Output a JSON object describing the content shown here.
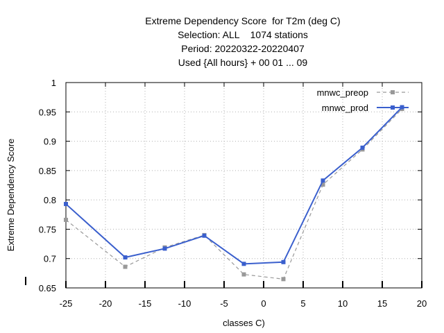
{
  "chart_data": {
    "type": "line",
    "title_lines": [
      "Extreme Dependency Score  for T2m (deg C)",
      "Selection: ALL    1074 stations",
      "Period: 20220322-20220407",
      "Used {All hours} + 00 01 ... 09"
    ],
    "xlabel": "classes C)",
    "ylabel": "Extreme Dependency Score",
    "xlim": [
      -25,
      20
    ],
    "ylim": [
      0.65,
      1.0
    ],
    "xticks": [
      -25,
      -20,
      -15,
      -10,
      -5,
      0,
      5,
      10,
      15,
      20
    ],
    "yticks": [
      0.65,
      0.7,
      0.75,
      0.8,
      0.85,
      0.9,
      0.95,
      1.0
    ],
    "ytick_labels": [
      "0.65",
      "0.7",
      "0.75",
      "0.8",
      "0.85",
      "0.9",
      "0.95",
      "1"
    ],
    "grid": true,
    "legend_position": "top-right",
    "series": [
      {
        "name": "mnwc_preop",
        "color": "#999999",
        "style": "dashed",
        "x": [
          -25,
          -17.5,
          -12.5,
          -7.5,
          -2.5,
          2.5,
          7.5,
          12.5,
          17.5
        ],
        "y": [
          0.766,
          0.686,
          0.719,
          0.74,
          0.673,
          0.665,
          0.826,
          0.886,
          0.955
        ]
      },
      {
        "name": "mnwc_prod",
        "color": "#3a5fcd",
        "style": "solid",
        "x": [
          -25,
          -17.5,
          -12.5,
          -7.5,
          -2.5,
          2.5,
          7.5,
          12.5,
          17.5
        ],
        "y": [
          0.793,
          0.702,
          0.717,
          0.739,
          0.691,
          0.694,
          0.833,
          0.889,
          0.958
        ]
      }
    ]
  }
}
